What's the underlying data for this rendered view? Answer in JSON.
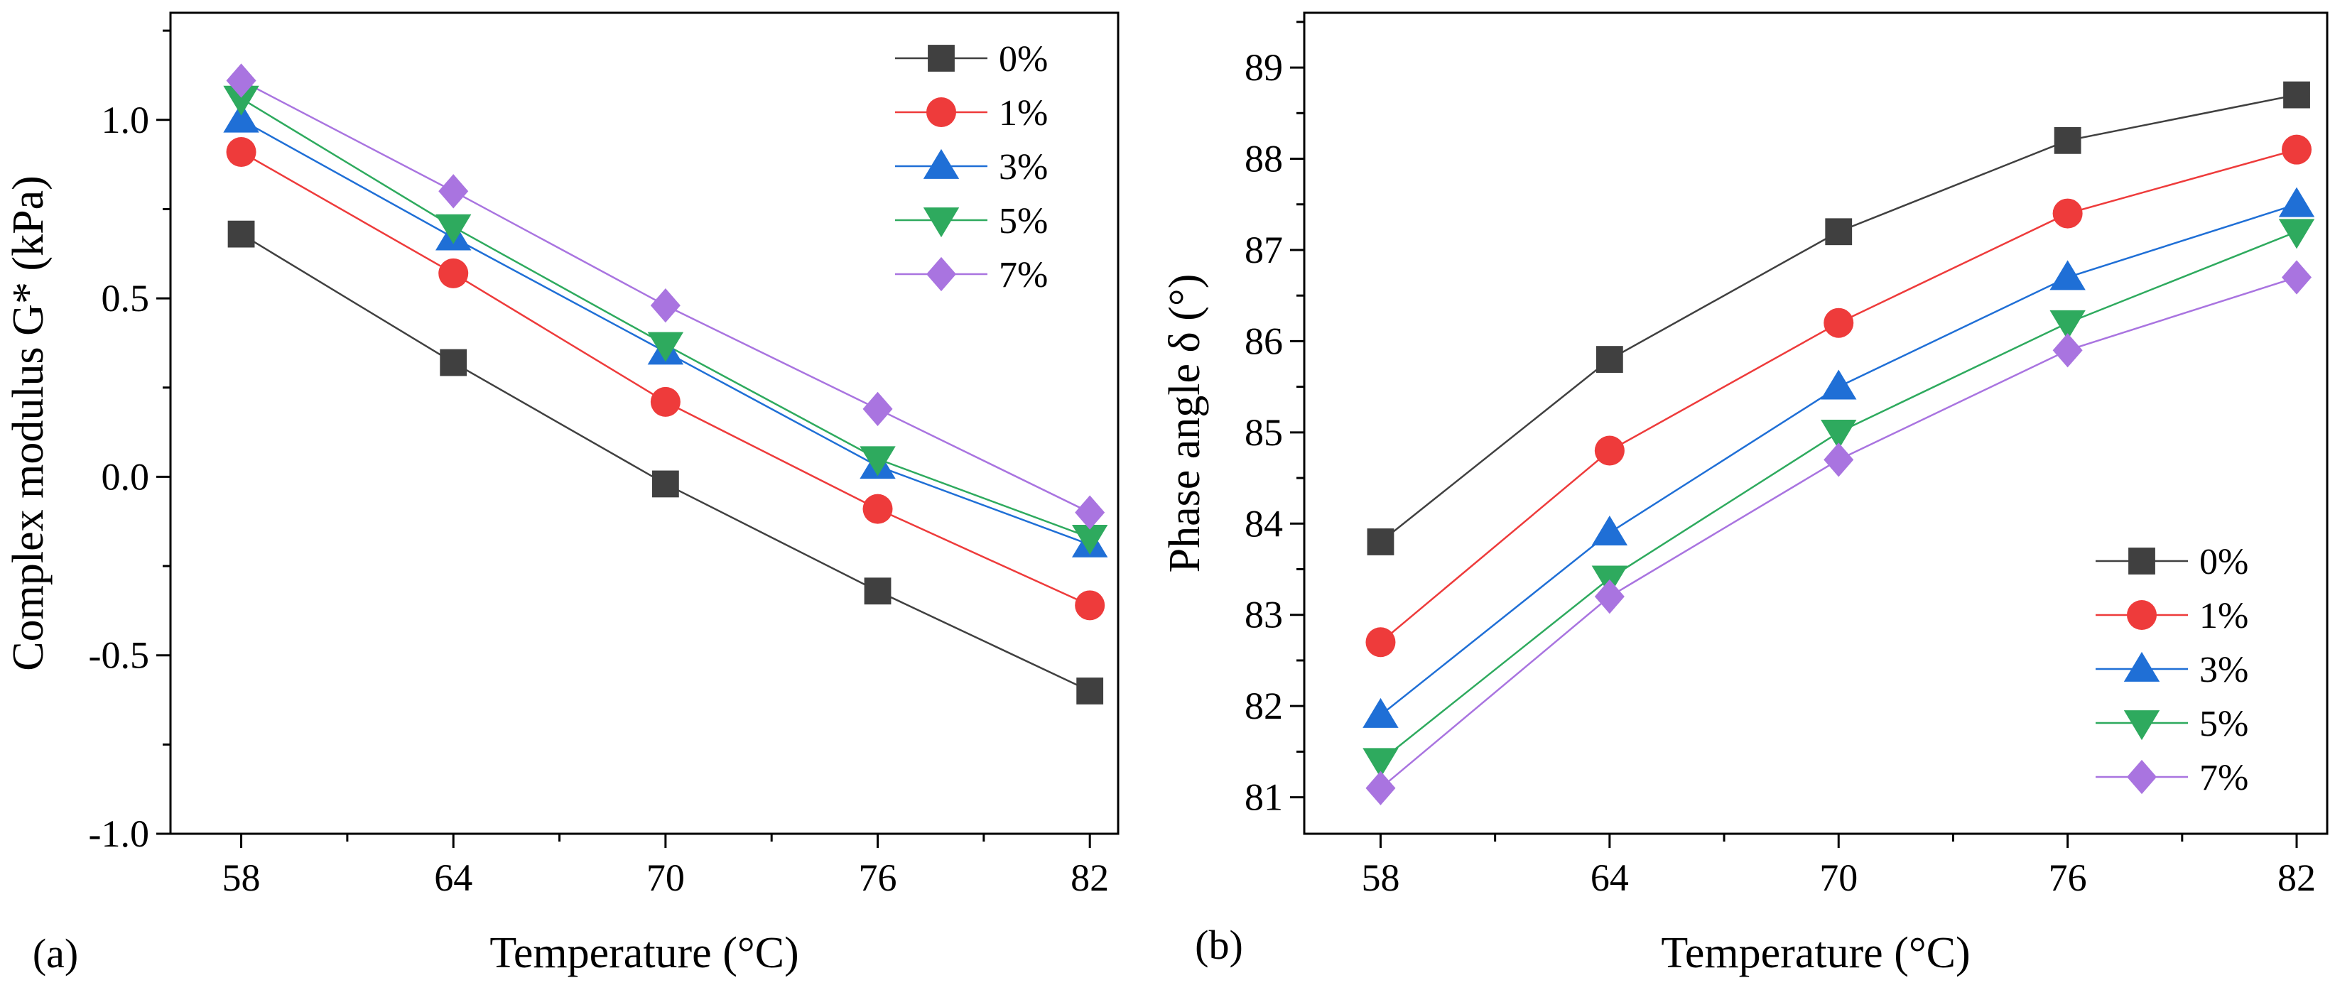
{
  "panel_a_label": "(a)",
  "panel_b_label": "(b)",
  "chart_data": [
    {
      "type": "line",
      "title": "",
      "xlabel": "Temperature (°C)",
      "ylabel": "Complex modulus G* (kPa)",
      "categories": [
        "58",
        "64",
        "70",
        "76",
        "82"
      ],
      "x": [
        58,
        64,
        70,
        76,
        82
      ],
      "xlim": [
        56,
        82.8
      ],
      "ylim": [
        -1.0,
        1.3
      ],
      "yticks": [
        "-1.0",
        "-0.5",
        "0.0",
        "0.5",
        "1.0"
      ],
      "ytick_values": [
        -1.0,
        -0.5,
        0.0,
        0.5,
        1.0
      ],
      "grid": false,
      "legend_position": "top-right",
      "series": [
        {
          "name": "0%",
          "color": "#404040",
          "marker": "square",
          "values": [
            0.68,
            0.32,
            -0.02,
            -0.32,
            -0.6
          ]
        },
        {
          "name": "1%",
          "color": "#ee3b3b",
          "marker": "circle",
          "values": [
            0.91,
            0.57,
            0.21,
            -0.09,
            -0.36
          ]
        },
        {
          "name": "3%",
          "color": "#1f6fd6",
          "marker": "triangle-up",
          "values": [
            1.0,
            0.67,
            0.35,
            0.03,
            -0.19
          ]
        },
        {
          "name": "5%",
          "color": "#2eaa5e",
          "marker": "triangle-down",
          "values": [
            1.06,
            0.7,
            0.37,
            0.05,
            -0.17
          ]
        },
        {
          "name": "7%",
          "color": "#a974e0",
          "marker": "diamond",
          "values": [
            1.11,
            0.8,
            0.48,
            0.19,
            -0.1
          ]
        }
      ]
    },
    {
      "type": "line",
      "title": "",
      "xlabel": "Temperature (°C)",
      "ylabel": "Phase angle δ (°)",
      "categories": [
        "58",
        "64",
        "70",
        "76",
        "82"
      ],
      "x": [
        58,
        64,
        70,
        76,
        82
      ],
      "xlim": [
        56,
        82.8
      ],
      "ylim": [
        80.6,
        89.6
      ],
      "yticks": [
        "81",
        "82",
        "83",
        "84",
        "85",
        "86",
        "87",
        "88",
        "89"
      ],
      "ytick_values": [
        81,
        82,
        83,
        84,
        85,
        86,
        87,
        88,
        89
      ],
      "grid": false,
      "legend_position": "bottom-right",
      "series": [
        {
          "name": "0%",
          "color": "#404040",
          "marker": "square",
          "values": [
            83.8,
            85.8,
            87.2,
            88.2,
            88.7
          ]
        },
        {
          "name": "1%",
          "color": "#ee3b3b",
          "marker": "circle",
          "values": [
            82.7,
            84.8,
            86.2,
            87.4,
            88.1
          ]
        },
        {
          "name": "3%",
          "color": "#1f6fd6",
          "marker": "triangle-up",
          "values": [
            81.9,
            83.9,
            85.5,
            86.7,
            87.5
          ]
        },
        {
          "name": "5%",
          "color": "#2eaa5e",
          "marker": "triangle-down",
          "values": [
            81.4,
            83.4,
            85.0,
            86.2,
            87.2
          ]
        },
        {
          "name": "7%",
          "color": "#a974e0",
          "marker": "diamond",
          "values": [
            81.1,
            83.2,
            84.7,
            85.9,
            86.7
          ]
        }
      ]
    }
  ]
}
